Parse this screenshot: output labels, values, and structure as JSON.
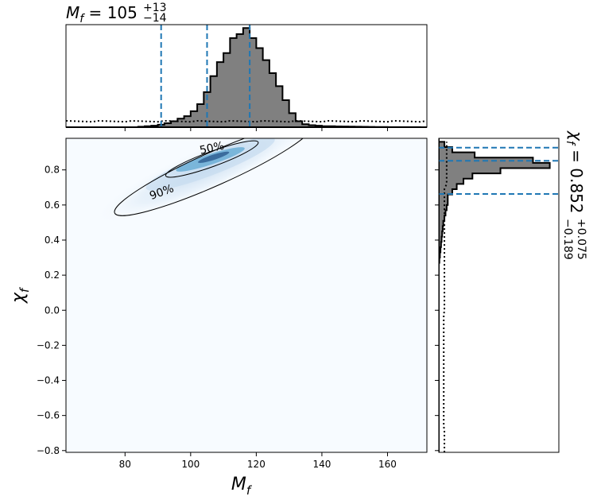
{
  "colors": {
    "hist_fill": "#808080",
    "hist_edge": "#000000",
    "quantile_line": "#1f77b4",
    "density_low": "#f7fbff",
    "density_high": "#08306b",
    "contour": "#000000"
  },
  "chart_data": [
    {
      "id": "joint",
      "type": "heatmap",
      "xlabel": "M_f",
      "ylabel": "χ_f",
      "xlim": [
        62,
        172
      ],
      "ylim": [
        -0.81,
        0.98
      ],
      "xticks": [
        80,
        100,
        120,
        140,
        160
      ],
      "yticks": [
        -0.8,
        -0.6,
        -0.4,
        -0.2,
        0.0,
        0.2,
        0.4,
        0.6,
        0.8
      ],
      "xtick_labels": [
        "80",
        "100",
        "120",
        "140",
        "160"
      ],
      "ytick_labels": [
        "−0.8",
        "−0.6",
        "−0.4",
        "−0.2",
        "0.0",
        "0.2",
        "0.4",
        "0.6",
        "0.8"
      ],
      "grid": false,
      "contours": [
        {
          "label": "50%",
          "center": [
            106.5,
            0.862
          ],
          "width": 30.0,
          "height": 0.085,
          "angle_deg": 20
        },
        {
          "label": "90%",
          "center": [
            107.0,
            0.805
          ],
          "width": 66.0,
          "height": 0.19,
          "angle_deg": 24
        }
      ],
      "density_peak": [
        106,
        0.87
      ]
    },
    {
      "id": "marginal_x",
      "type": "histogram",
      "title_text": "105",
      "title_sup": "+13",
      "title_sub": "−14",
      "xlim": [
        62,
        172
      ],
      "bin_edges_start": 62,
      "bin_width": 2,
      "counts": [
        0,
        0,
        0,
        0,
        0,
        0,
        0,
        0,
        0,
        0,
        0,
        0.005,
        0.01,
        0.015,
        0.025,
        0.04,
        0.06,
        0.085,
        0.11,
        0.16,
        0.23,
        0.35,
        0.51,
        0.65,
        0.74,
        0.89,
        0.93,
        0.99,
        0.89,
        0.79,
        0.67,
        0.54,
        0.41,
        0.27,
        0.14,
        0.06,
        0.03,
        0.02,
        0.015,
        0.01,
        0.01,
        0.008,
        0.007,
        0.006,
        0.005,
        0.004,
        0.003,
        0.002,
        0.002,
        0.001,
        0.001,
        0.001,
        0.001,
        0.001,
        0
      ],
      "ymax": 1.0,
      "prior_level": 0.06,
      "quantiles": [
        91,
        105,
        118
      ]
    },
    {
      "id": "marginal_y",
      "type": "histogram",
      "orientation": "horizontal",
      "title_text": "0.852",
      "title_sup": "+0.075",
      "title_sub": "−0.189",
      "ylim": [
        -0.81,
        0.98
      ],
      "bin_edges_start": -0.81,
      "bin_width": 0.03,
      "counts": [
        0,
        0,
        0,
        0,
        0,
        0,
        0,
        0,
        0,
        0,
        0,
        0,
        0,
        0,
        0,
        0,
        0,
        0,
        0,
        0,
        0,
        0,
        0,
        0,
        0,
        0,
        0,
        0,
        0,
        0,
        0,
        0,
        0,
        0,
        0,
        0,
        0.005,
        0.01,
        0.015,
        0.02,
        0.025,
        0.03,
        0.035,
        0.04,
        0.05,
        0.06,
        0.07,
        0.08,
        0.08,
        0.12,
        0.16,
        0.22,
        0.3,
        0.55,
        0.99,
        0.84,
        0.32,
        0.12,
        0.05,
        0
      ],
      "xmax": 1.0,
      "prior_level": 0.05,
      "quantiles": [
        0.663,
        0.852,
        0.927
      ]
    }
  ]
}
